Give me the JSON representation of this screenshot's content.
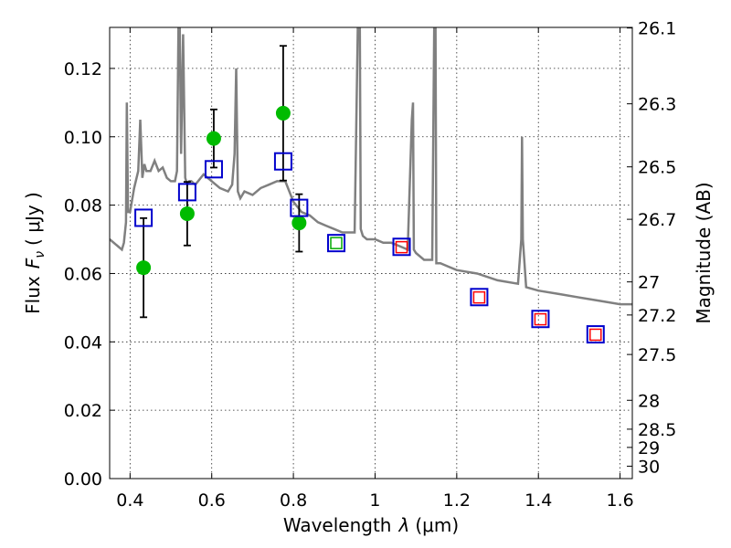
{
  "chart_data": {
    "type": "scatter",
    "xlabel_prefix": "Wavelength",
    "xlabel_symbol": "λ",
    "xlabel_unit": "(μm)",
    "ylabel_prefix": "Flux",
    "ylabel_symbol": "F",
    "ylabel_sub": "ν",
    "ylabel_unit": "( μJy )",
    "y2label": "Magnitude (AB)",
    "xlim": [
      0.35,
      1.63
    ],
    "ylim": [
      0.0,
      0.132
    ],
    "grid": true,
    "x_ticks": [
      0.4,
      0.6,
      0.8,
      1.0,
      1.2,
      1.4,
      1.6
    ],
    "x_tick_labels": [
      "0.4",
      "0.6",
      "0.8",
      "1",
      "1.2",
      "1.4",
      "1.6"
    ],
    "y_ticks": [
      0.0,
      0.02,
      0.04,
      0.06,
      0.08,
      0.1,
      0.12
    ],
    "y_tick_labels": [
      "0.00",
      "0.02",
      "0.04",
      "0.06",
      "0.08",
      "0.10",
      "0.12"
    ],
    "mag_ticks": [
      26.1,
      26.3,
      26.5,
      26.7,
      27,
      27.2,
      27.5,
      28,
      28.5,
      29,
      30
    ],
    "mag_tick_labels": [
      "26.1",
      "26.3",
      "26.5",
      "26.7",
      "27",
      "27.2",
      "27.5",
      "28",
      "28.5",
      "29",
      "30"
    ],
    "series": [
      {
        "name": "model-spectrum",
        "kind": "line",
        "color": "#808080",
        "x": [
          0.35,
          0.37,
          0.38,
          0.385,
          0.39,
          0.392,
          0.395,
          0.4,
          0.41,
          0.42,
          0.425,
          0.43,
          0.435,
          0.44,
          0.45,
          0.46,
          0.47,
          0.48,
          0.49,
          0.5,
          0.51,
          0.515,
          0.52,
          0.525,
          0.53,
          0.535,
          0.54,
          0.545,
          0.55,
          0.56,
          0.58,
          0.6,
          0.62,
          0.64,
          0.65,
          0.656,
          0.66,
          0.664,
          0.67,
          0.68,
          0.7,
          0.72,
          0.74,
          0.76,
          0.78,
          0.8,
          0.82,
          0.84,
          0.86,
          0.88,
          0.9,
          0.92,
          0.95,
          0.96,
          0.962,
          0.965,
          0.97,
          0.98,
          1.0,
          1.02,
          1.04,
          1.06,
          1.08,
          1.09,
          1.093,
          1.095,
          1.1,
          1.12,
          1.14,
          1.145,
          1.148,
          1.15,
          1.16,
          1.18,
          1.2,
          1.25,
          1.3,
          1.35,
          1.358,
          1.36,
          1.362,
          1.37,
          1.4,
          1.45,
          1.5,
          1.55,
          1.6,
          1.63
        ],
        "y": [
          0.07,
          0.068,
          0.067,
          0.069,
          0.075,
          0.11,
          0.078,
          0.078,
          0.085,
          0.09,
          0.105,
          0.088,
          0.092,
          0.09,
          0.09,
          0.093,
          0.09,
          0.091,
          0.088,
          0.087,
          0.087,
          0.09,
          0.15,
          0.095,
          0.13,
          0.088,
          0.086,
          0.087,
          0.087,
          0.086,
          0.089,
          0.087,
          0.085,
          0.084,
          0.086,
          0.095,
          0.12,
          0.084,
          0.082,
          0.084,
          0.083,
          0.085,
          0.086,
          0.087,
          0.087,
          0.081,
          0.078,
          0.077,
          0.075,
          0.074,
          0.073,
          0.072,
          0.072,
          0.15,
          0.15,
          0.073,
          0.071,
          0.07,
          0.07,
          0.069,
          0.069,
          0.068,
          0.067,
          0.105,
          0.11,
          0.067,
          0.066,
          0.064,
          0.064,
          0.135,
          0.135,
          0.063,
          0.063,
          0.062,
          0.061,
          0.06,
          0.058,
          0.057,
          0.07,
          0.1,
          0.07,
          0.056,
          0.055,
          0.054,
          0.053,
          0.052,
          0.051,
          0.051
        ]
      },
      {
        "name": "observed-flux",
        "kind": "points-errorbar",
        "color": "#00bb00",
        "x": [
          0.433,
          0.54,
          0.605,
          0.775,
          0.814
        ],
        "y": [
          0.0617,
          0.0775,
          0.0995,
          0.1069,
          0.0748
        ],
        "yerr": [
          0.0145,
          0.0093,
          0.0085,
          0.0197,
          0.0084
        ]
      },
      {
        "name": "model-photometry-blue",
        "kind": "open-squares",
        "color": "#0000cc",
        "x": [
          0.433,
          0.54,
          0.605,
          0.775,
          0.814,
          0.905,
          1.065,
          1.255,
          1.405,
          1.54
        ],
        "y": [
          0.0763,
          0.0838,
          0.0905,
          0.0928,
          0.0792,
          0.0689,
          0.0678,
          0.0531,
          0.0467,
          0.0422
        ]
      },
      {
        "name": "observed-photometry-green",
        "kind": "small-open-squares",
        "color": "#00aa00",
        "x": [
          0.905
        ],
        "y": [
          0.0689
        ]
      },
      {
        "name": "observed-photometry-red",
        "kind": "small-open-squares",
        "color": "#ff0000",
        "x": [
          1.065,
          1.255,
          1.405,
          1.54
        ],
        "y": [
          0.0677,
          0.053,
          0.0466,
          0.0421
        ]
      }
    ]
  }
}
